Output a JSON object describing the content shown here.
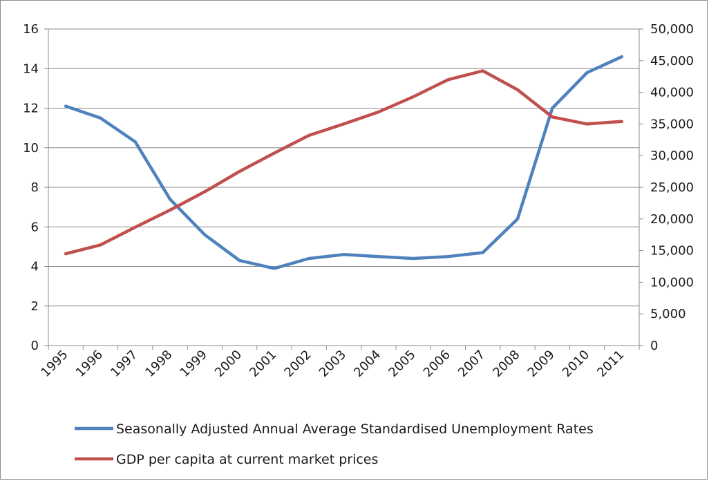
{
  "chart_data": {
    "type": "line",
    "categories": [
      "1995",
      "1996",
      "1997",
      "1998",
      "1999",
      "2000",
      "2001",
      "2002",
      "2003",
      "2004",
      "2005",
      "2006",
      "2007",
      "2008",
      "2009",
      "2010",
      "2011"
    ],
    "series": [
      {
        "name": "Seasonally Adjusted Annual Average Standardised Unemployment Rates",
        "axis": "left",
        "color": "#4f81bd",
        "values": [
          12.1,
          11.5,
          10.3,
          7.4,
          5.6,
          4.3,
          3.9,
          4.4,
          4.6,
          4.5,
          4.4,
          4.5,
          4.7,
          6.4,
          12.0,
          13.8,
          14.6
        ]
      },
      {
        "name": "GDP per capita at current market prices",
        "axis": "right",
        "color": "#c0504d",
        "values": [
          14500,
          15900,
          18700,
          21400,
          24300,
          27500,
          30400,
          33200,
          35000,
          36900,
          39300,
          42000,
          43400,
          40400,
          36100,
          35000,
          35400
        ]
      }
    ],
    "y_left": {
      "ylim": [
        0,
        16
      ],
      "ticks": [
        "0",
        "2",
        "4",
        "6",
        "8",
        "10",
        "12",
        "14",
        "16"
      ]
    },
    "y_right": {
      "ylim": [
        0,
        50000
      ],
      "ticks": [
        "0",
        "5,000",
        "10,000",
        "15,000",
        "20,000",
        "25,000",
        "30,000",
        "35,000",
        "40,000",
        "45,000",
        "50,000"
      ]
    },
    "grid": true,
    "legend_position": "bottom"
  }
}
